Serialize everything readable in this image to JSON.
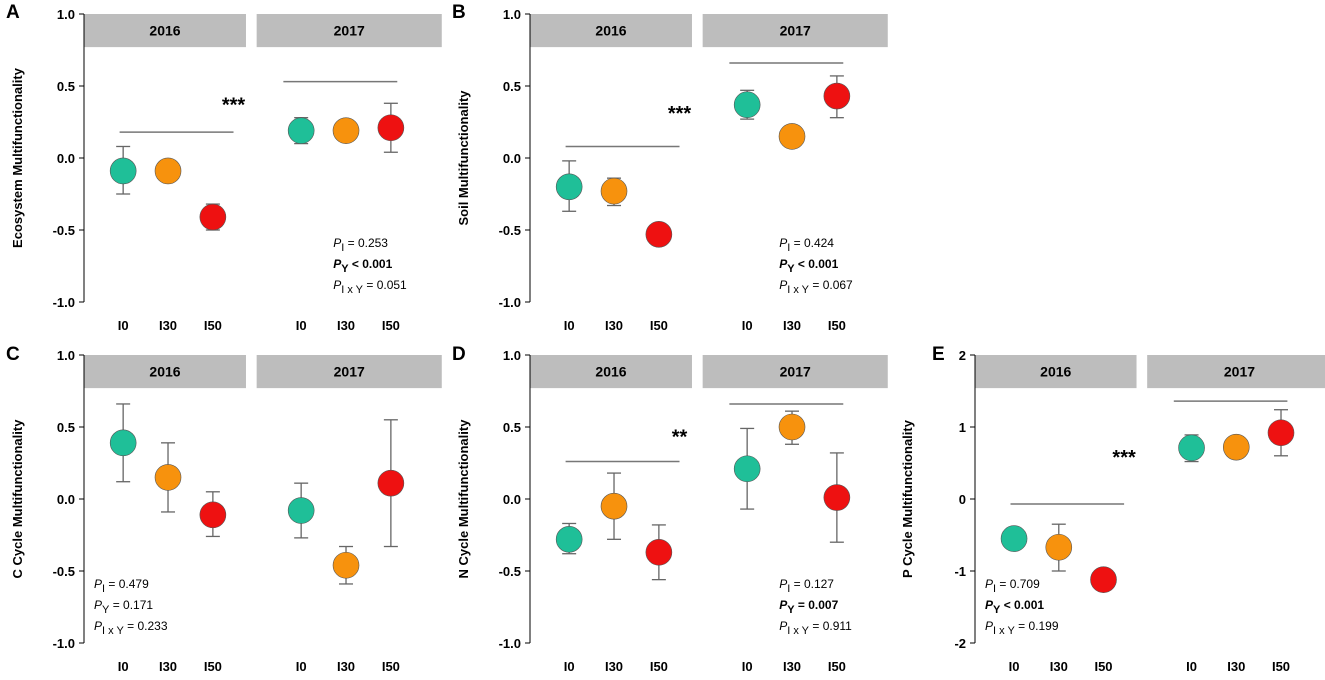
{
  "colors": {
    "I0": "#1fbf98",
    "I30": "#f7920d",
    "I50": "#ee1111",
    "strip": "#bdbdbd",
    "errorbar": "#666666",
    "sigline": "#777777"
  },
  "chart_data": [
    {
      "type": "scatter",
      "panel": "A",
      "ylabel": "Ecosystem Multifunctionality",
      "ylim": [
        -1.0,
        1.0
      ],
      "yticks": [
        "-1.0",
        "-0.5",
        "0.0",
        "0.5",
        "1.0"
      ],
      "ytick_values": [
        -1,
        -0.5,
        0,
        0.5,
        1
      ],
      "groups": [
        "2016",
        "2017"
      ],
      "categories": [
        "I0",
        "I30",
        "I50"
      ],
      "series": [
        {
          "group": "2016",
          "name": "I0",
          "value": -0.09,
          "lower": -0.25,
          "upper": 0.08
        },
        {
          "group": "2016",
          "name": "I30",
          "value": -0.09,
          "lower": -0.09,
          "upper": -0.09
        },
        {
          "group": "2016",
          "name": "I50",
          "value": -0.41,
          "lower": -0.5,
          "upper": -0.32
        },
        {
          "group": "2017",
          "name": "I0",
          "value": 0.19,
          "lower": 0.1,
          "upper": 0.28
        },
        {
          "group": "2017",
          "name": "I30",
          "value": 0.19,
          "lower": 0.19,
          "upper": 0.19
        },
        {
          "group": "2017",
          "name": "I50",
          "value": 0.21,
          "lower": 0.04,
          "upper": 0.38
        }
      ],
      "group_lines": [
        {
          "group": "2016",
          "y": 0.18
        },
        {
          "group": "2017",
          "y": 0.53
        }
      ],
      "significance": "***",
      "sig_y": 0.38,
      "stats": {
        "pos": "bottom-right",
        "I": {
          "label": "P",
          "sub": "I",
          "text": "  = 0.253",
          "bold": false
        },
        "Y": {
          "label": "P",
          "sub": "Y",
          "text": " < 0.001",
          "bold": true
        },
        "IxY": {
          "label": "P",
          "sub": "I x Y",
          "text": " = 0.051",
          "bold": false
        }
      }
    },
    {
      "type": "scatter",
      "panel": "B",
      "ylabel": "Soil Multifunctionality",
      "ylim": [
        -1.0,
        1.0
      ],
      "yticks": [
        "-1.0",
        "-0.5",
        "0.0",
        "0.5",
        "1.0"
      ],
      "ytick_values": [
        -1,
        -0.5,
        0,
        0.5,
        1
      ],
      "groups": [
        "2016",
        "2017"
      ],
      "categories": [
        "I0",
        "I30",
        "I50"
      ],
      "series": [
        {
          "group": "2016",
          "name": "I0",
          "value": -0.2,
          "lower": -0.37,
          "upper": -0.02
        },
        {
          "group": "2016",
          "name": "I30",
          "value": -0.23,
          "lower": -0.33,
          "upper": -0.14
        },
        {
          "group": "2016",
          "name": "I50",
          "value": -0.53,
          "lower": -0.53,
          "upper": -0.53
        },
        {
          "group": "2017",
          "name": "I0",
          "value": 0.37,
          "lower": 0.27,
          "upper": 0.47
        },
        {
          "group": "2017",
          "name": "I30",
          "value": 0.15,
          "lower": 0.15,
          "upper": 0.15
        },
        {
          "group": "2017",
          "name": "I50",
          "value": 0.43,
          "lower": 0.28,
          "upper": 0.57
        }
      ],
      "group_lines": [
        {
          "group": "2016",
          "y": 0.08
        },
        {
          "group": "2017",
          "y": 0.66
        }
      ],
      "significance": "***",
      "sig_y": 0.32,
      "stats": {
        "pos": "bottom-right",
        "I": {
          "label": "P",
          "sub": "I",
          "text": "  = 0.424",
          "bold": false
        },
        "Y": {
          "label": "P",
          "sub": "Y",
          "text": " < 0.001",
          "bold": true
        },
        "IxY": {
          "label": "P",
          "sub": "I x Y",
          "text": " = 0.067",
          "bold": false
        }
      }
    },
    {
      "type": "scatter",
      "panel": "C",
      "ylabel": "C Cycle Multifunctionality",
      "ylim": [
        -1.0,
        1.0
      ],
      "yticks": [
        "-1.0",
        "-0.5",
        "0.0",
        "0.5",
        "1.0"
      ],
      "ytick_values": [
        -1,
        -0.5,
        0,
        0.5,
        1
      ],
      "groups": [
        "2016",
        "2017"
      ],
      "categories": [
        "I0",
        "I30",
        "I50"
      ],
      "series": [
        {
          "group": "2016",
          "name": "I0",
          "value": 0.39,
          "lower": 0.12,
          "upper": 0.66
        },
        {
          "group": "2016",
          "name": "I30",
          "value": 0.15,
          "lower": -0.09,
          "upper": 0.39
        },
        {
          "group": "2016",
          "name": "I50",
          "value": -0.11,
          "lower": -0.26,
          "upper": 0.05
        },
        {
          "group": "2017",
          "name": "I0",
          "value": -0.08,
          "lower": -0.27,
          "upper": 0.11
        },
        {
          "group": "2017",
          "name": "I30",
          "value": -0.46,
          "lower": -0.59,
          "upper": -0.33
        },
        {
          "group": "2017",
          "name": "I50",
          "value": 0.11,
          "lower": -0.33,
          "upper": 0.55
        }
      ],
      "group_lines": [],
      "significance": "",
      "sig_y": 0,
      "stats": {
        "pos": "bottom-left",
        "I": {
          "label": "P",
          "sub": "I",
          "text": "  = 0.479",
          "bold": false
        },
        "Y": {
          "label": "P",
          "sub": "Y",
          "text": " =  0.171",
          "bold": false
        },
        "IxY": {
          "label": "P",
          "sub": "I x Y",
          "text": " = 0.233",
          "bold": false
        }
      }
    },
    {
      "type": "scatter",
      "panel": "D",
      "ylabel": "N Cycle Multifunctionality",
      "ylim": [
        -1.0,
        1.0
      ],
      "yticks": [
        "-1.0",
        "-0.5",
        "0.0",
        "0.5",
        "1.0"
      ],
      "ytick_values": [
        -1,
        -0.5,
        0,
        0.5,
        1
      ],
      "groups": [
        "2016",
        "2017"
      ],
      "categories": [
        "I0",
        "I30",
        "I50"
      ],
      "series": [
        {
          "group": "2016",
          "name": "I0",
          "value": -0.28,
          "lower": -0.38,
          "upper": -0.17
        },
        {
          "group": "2016",
          "name": "I30",
          "value": -0.05,
          "lower": -0.28,
          "upper": 0.18
        },
        {
          "group": "2016",
          "name": "I50",
          "value": -0.37,
          "lower": -0.56,
          "upper": -0.18
        },
        {
          "group": "2017",
          "name": "I0",
          "value": 0.21,
          "lower": -0.07,
          "upper": 0.49
        },
        {
          "group": "2017",
          "name": "I30",
          "value": 0.5,
          "lower": 0.38,
          "upper": 0.61
        },
        {
          "group": "2017",
          "name": "I50",
          "value": 0.01,
          "lower": -0.3,
          "upper": 0.32
        }
      ],
      "group_lines": [
        {
          "group": "2016",
          "y": 0.26
        },
        {
          "group": "2017",
          "y": 0.66
        }
      ],
      "significance": "**",
      "sig_y": 0.44,
      "stats": {
        "pos": "bottom-right",
        "I": {
          "label": "P",
          "sub": "I",
          "text": "  = 0.127",
          "bold": false
        },
        "Y": {
          "label": "P",
          "sub": "Y",
          "text": " =  0.007",
          "bold": true
        },
        "IxY": {
          "label": "P",
          "sub": "I x Y",
          "text": " = 0.911",
          "bold": false
        }
      }
    },
    {
      "type": "scatter",
      "panel": "E",
      "ylabel": "P Cycle Multifunctionality",
      "ylim": [
        -2,
        2
      ],
      "yticks": [
        "-2",
        "-1",
        "0",
        "1",
        "2"
      ],
      "ytick_values": [
        -2,
        -1,
        0,
        1,
        2
      ],
      "groups": [
        "2016",
        "2017"
      ],
      "categories": [
        "I0",
        "I30",
        "I50"
      ],
      "series": [
        {
          "group": "2016",
          "name": "I0",
          "value": -0.55,
          "lower": -0.55,
          "upper": -0.55
        },
        {
          "group": "2016",
          "name": "I30",
          "value": -0.67,
          "lower": -1.0,
          "upper": -0.35
        },
        {
          "group": "2016",
          "name": "I50",
          "value": -1.12,
          "lower": -1.22,
          "upper": -1.02
        },
        {
          "group": "2017",
          "name": "I0",
          "value": 0.71,
          "lower": 0.52,
          "upper": 0.89
        },
        {
          "group": "2017",
          "name": "I30",
          "value": 0.72,
          "lower": 0.72,
          "upper": 0.72
        },
        {
          "group": "2017",
          "name": "I50",
          "value": 0.92,
          "lower": 0.6,
          "upper": 1.24
        }
      ],
      "group_lines": [
        {
          "group": "2016",
          "y": -0.07
        },
        {
          "group": "2017",
          "y": 1.36
        }
      ],
      "significance": "***",
      "sig_y": 0.6,
      "stats": {
        "pos": "bottom-left",
        "I": {
          "label": "P",
          "sub": "I",
          "text": "  = 0.709",
          "bold": false
        },
        "Y": {
          "label": "P",
          "sub": "Y",
          "text": " < 0.001",
          "bold": true
        },
        "IxY": {
          "label": "P",
          "sub": "I x Y",
          "text": " = 0.199",
          "bold": false
        }
      }
    }
  ]
}
